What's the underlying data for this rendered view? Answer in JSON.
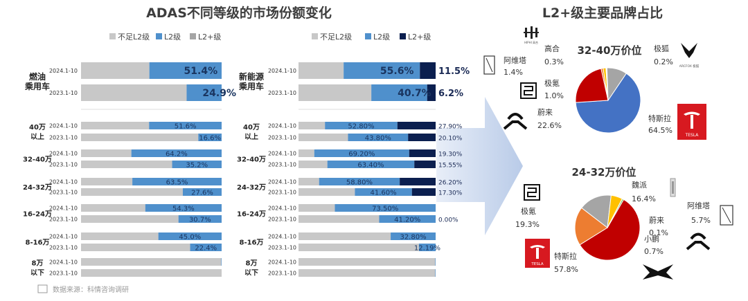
{
  "chart_data": [
    {
      "type": "bar",
      "title": "ADAS不同等级的市场份额变化",
      "panel": "燃油乘用车",
      "legend": [
        "不足L2级",
        "L2级",
        "L2+级"
      ],
      "colors": {
        "below_l2": "#c8c8c8",
        "l2": "#4f90cc",
        "l2plus": "#0b1f4f"
      },
      "groups": [
        {
          "label": "燃油\n乘用车",
          "rows": [
            {
              "year": "2024.1-10",
              "l2": 51.4,
              "l2plus": 0,
              "l2_label": "51.4%",
              "l2plus_label": ""
            },
            {
              "year": "2023.1-10",
              "l2": 24.9,
              "l2plus": 0,
              "l2_label": "24.9%",
              "l2plus_label": ""
            }
          ]
        },
        {
          "label": "40万\n以上",
          "rows": [
            {
              "year": "2024.1-10",
              "l2": 51.6,
              "l2plus": 0,
              "l2_label": "51.6%",
              "l2plus_label": ""
            },
            {
              "year": "2023.1-10",
              "l2": 16.6,
              "l2plus": 0,
              "l2_label": "16.6%",
              "l2plus_label": ""
            }
          ]
        },
        {
          "label": "32-40万",
          "rows": [
            {
              "year": "2024.1-10",
              "l2": 64.2,
              "l2plus": 0,
              "l2_label": "64.2%",
              "l2plus_label": ""
            },
            {
              "year": "2023.1-10",
              "l2": 35.2,
              "l2plus": 0,
              "l2_label": "35.2%",
              "l2plus_label": ""
            }
          ]
        },
        {
          "label": "24-32万",
          "rows": [
            {
              "year": "2024.1-10",
              "l2": 63.5,
              "l2plus": 0,
              "l2_label": "63.5%",
              "l2plus_label": ""
            },
            {
              "year": "2023.1-10",
              "l2": 27.6,
              "l2plus": 0,
              "l2_label": "27.6%",
              "l2plus_label": ""
            }
          ]
        },
        {
          "label": "16-24万",
          "rows": [
            {
              "year": "2024.1-10",
              "l2": 54.3,
              "l2plus": 0,
              "l2_label": "54.3%",
              "l2plus_label": ""
            },
            {
              "year": "2023.1-10",
              "l2": 30.7,
              "l2plus": 0,
              "l2_label": "30.7%",
              "l2plus_label": ""
            }
          ]
        },
        {
          "label": "8-16万",
          "rows": [
            {
              "year": "2024.1-10",
              "l2": 45.0,
              "l2plus": 0,
              "l2_label": "45.0%",
              "l2plus_label": ""
            },
            {
              "year": "2023.1-10",
              "l2": 22.4,
              "l2plus": 0,
              "l2_label": "22.4%",
              "l2plus_label": ""
            }
          ]
        },
        {
          "label": "8万\n以下",
          "rows": [
            {
              "year": "2024.1-10",
              "l2": 0.3,
              "l2plus": 0,
              "l2_label": "",
              "l2plus_label": ""
            },
            {
              "year": "2023.1-10",
              "l2": 0.0,
              "l2plus": 0,
              "l2_label": "",
              "l2plus_label": ""
            }
          ]
        }
      ]
    },
    {
      "type": "bar",
      "panel": "新能源乘用车",
      "legend": [
        "不足L2级",
        "L2级",
        "L2+级"
      ],
      "groups": [
        {
          "label": "新能源\n乘用车",
          "rows": [
            {
              "year": "2024.1-10",
              "l2": 55.6,
              "l2plus": 11.5,
              "l2_label": "55.6%",
              "l2plus_label": "11.5%"
            },
            {
              "year": "2023.1-10",
              "l2": 40.7,
              "l2plus": 6.2,
              "l2_label": "40.7%",
              "l2plus_label": "6.2%"
            }
          ]
        },
        {
          "label": "40万\n以上",
          "rows": [
            {
              "year": "2024.1-10",
              "l2": 52.8,
              "l2plus": 27.9,
              "l2_label": "52.80%",
              "l2plus_label": "27.90%"
            },
            {
              "year": "2023.1-10",
              "l2": 43.8,
              "l2plus": 20.1,
              "l2_label": "43.80%",
              "l2plus_label": "20.10%"
            }
          ]
        },
        {
          "label": "32-40万",
          "rows": [
            {
              "year": "2024.1-10",
              "l2": 69.2,
              "l2plus": 19.3,
              "l2_label": "69.20%",
              "l2plus_label": "19.30%"
            },
            {
              "year": "2023.1-10",
              "l2": 63.4,
              "l2plus": 15.55,
              "l2_label": "63.40%",
              "l2plus_label": "15.55%"
            }
          ]
        },
        {
          "label": "24-32万",
          "rows": [
            {
              "year": "2024.1-10",
              "l2": 58.8,
              "l2plus": 26.2,
              "l2_label": "58.80%",
              "l2plus_label": "26.20%"
            },
            {
              "year": "2023.1-10",
              "l2": 41.6,
              "l2plus": 17.3,
              "l2_label": "41.60%",
              "l2plus_label": "17.30%"
            }
          ]
        },
        {
          "label": "16-24万",
          "rows": [
            {
              "year": "2024.1-10",
              "l2": 73.5,
              "l2plus": 0,
              "l2_label": "73.50%",
              "l2plus_label": ""
            },
            {
              "year": "2023.1-10",
              "l2": 41.2,
              "l2plus": 0,
              "l2_label": "41.20%",
              "l2plus_label": "0.00%"
            }
          ]
        },
        {
          "label": "8-16万",
          "rows": [
            {
              "year": "2024.1-10",
              "l2": 32.8,
              "l2plus": 0,
              "l2_label": "32.80%",
              "l2plus_label": ""
            },
            {
              "year": "2023.1-10",
              "l2": 12.19,
              "l2plus": 0,
              "l2_label": "12.19%",
              "l2plus_label": ""
            }
          ]
        },
        {
          "label": "8万\n以下",
          "rows": [
            {
              "year": "2024.1-10",
              "l2": 0.3,
              "l2plus": 0,
              "l2_label": "",
              "l2plus_label": ""
            },
            {
              "year": "2023.1-10",
              "l2": 0.3,
              "l2plus": 0,
              "l2_label": "",
              "l2plus_label": ""
            }
          ]
        }
      ]
    },
    {
      "type": "pie",
      "title": "L2+级主要品牌占比",
      "subtitle": "32-40万价位",
      "slices": [
        {
          "name": "特斯拉",
          "value": 64.5,
          "label": "64.5%",
          "color": "#4472c4"
        },
        {
          "name": "蔚来",
          "value": 22.6,
          "label": "22.6%",
          "color": "#c00000"
        },
        {
          "name": "极氪",
          "value": 1.0,
          "label": "1.0%",
          "color": "#ed7d31"
        },
        {
          "name": "阿维塔",
          "value": 1.4,
          "label": "1.4%",
          "color": "#ffc000"
        },
        {
          "name": "高合",
          "value": 0.3,
          "label": "0.3%",
          "color": "#5b9bd5"
        },
        {
          "name": "极狐",
          "value": 0.2,
          "label": "0.2%",
          "color": "#70ad47"
        },
        {
          "name": "",
          "value": 10.0,
          "label": "",
          "color": "#a5a5a5"
        }
      ]
    },
    {
      "type": "pie",
      "subtitle": "24-32万价位",
      "slices": [
        {
          "name": "特斯拉",
          "value": 57.8,
          "label": "57.8%",
          "color": "#c00000"
        },
        {
          "name": "极氪",
          "value": 19.3,
          "label": "19.3%",
          "color": "#ed7d31"
        },
        {
          "name": "魏派",
          "value": 16.4,
          "label": "16.4%",
          "color": "#a5a5a5"
        },
        {
          "name": "阿维塔",
          "value": 5.7,
          "label": "5.7%",
          "color": "#ffc000"
        },
        {
          "name": "蔚来",
          "value": 0.1,
          "label": "0.1%",
          "color": "#4472c4"
        },
        {
          "name": "小鹏",
          "value": 0.7,
          "label": "0.7%",
          "color": "#70ad47"
        }
      ]
    }
  ],
  "source": "数据来源：科情咨询调研",
  "logos": {
    "hiphi": "HIPHI 高合",
    "arcfox": "ARCFOX 极狐",
    "tesla": "TESLA"
  }
}
